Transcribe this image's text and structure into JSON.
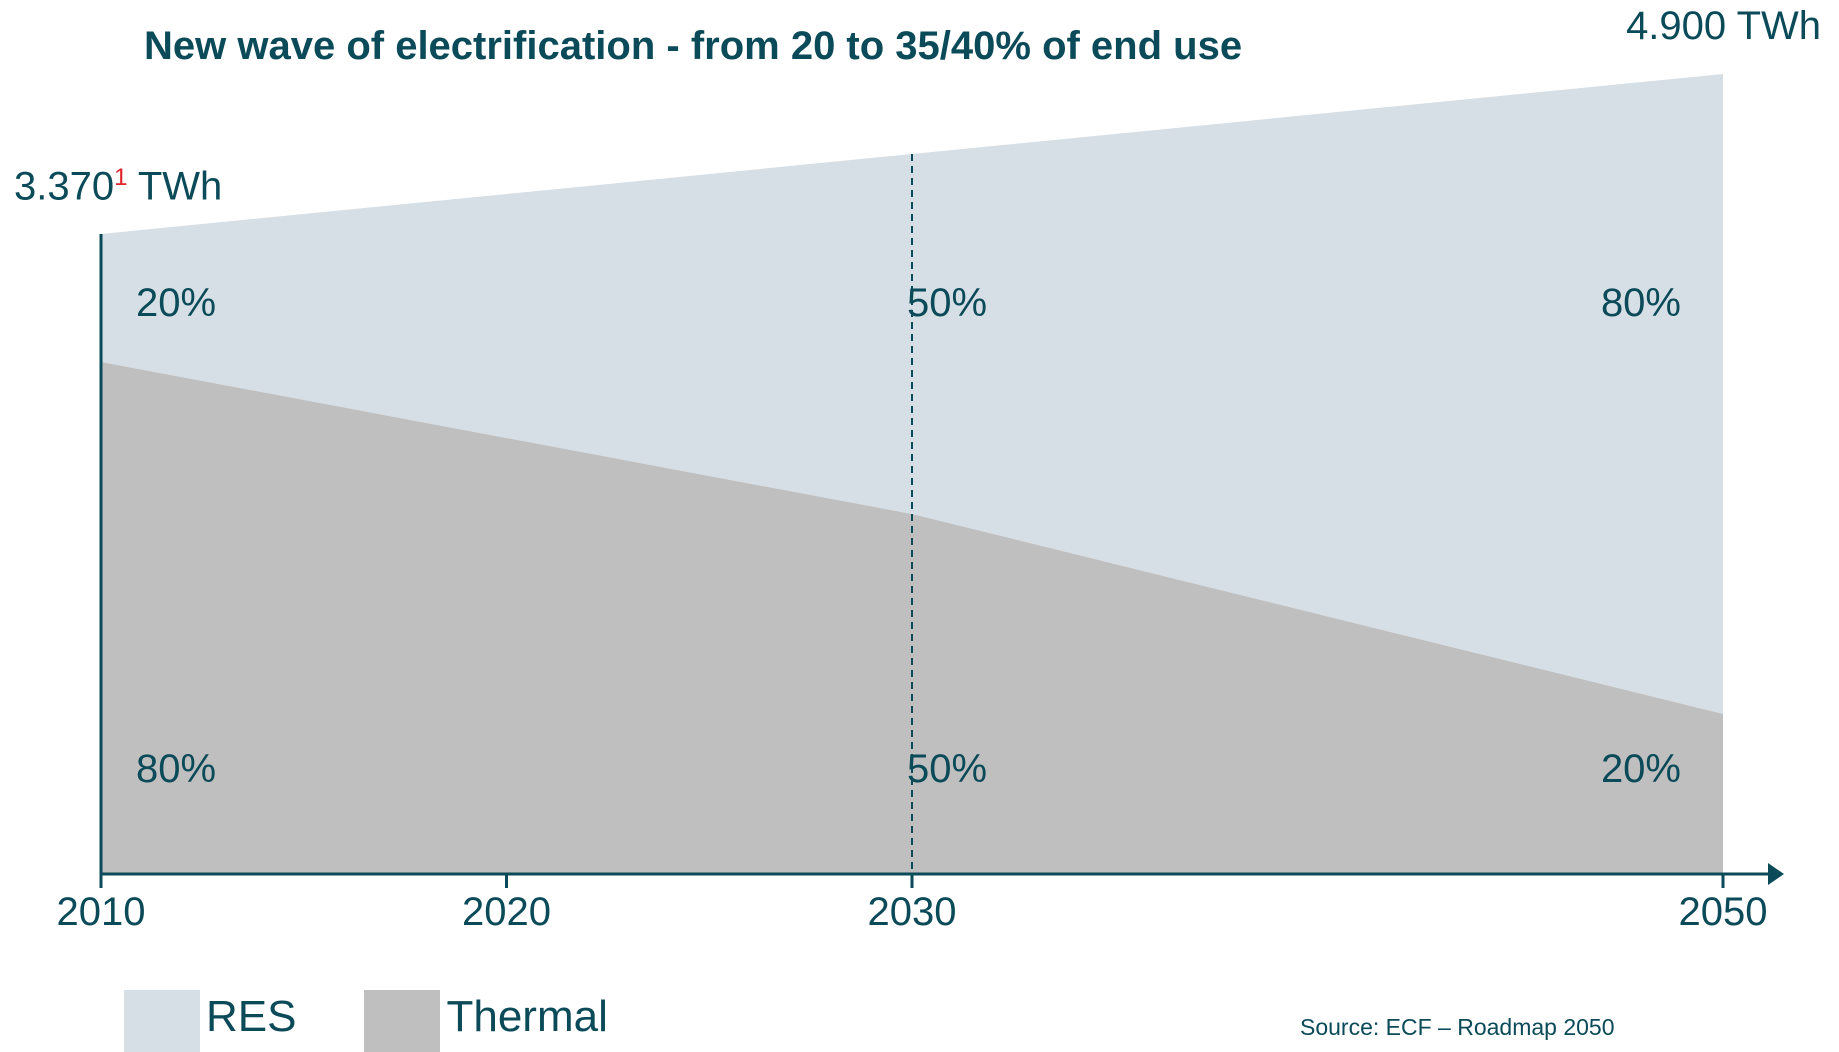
{
  "chart_data": {
    "type": "area",
    "title": "New wave of electrification - from 20 to 35/40% of end use",
    "x": [
      2010,
      2030,
      2050
    ],
    "tick_labels": [
      "2010",
      "2020",
      "2030",
      "2050"
    ],
    "series": [
      {
        "name": "Thermal",
        "share_percent": [
          80,
          50,
          20
        ],
        "color": "#bfbfbf"
      },
      {
        "name": "RES",
        "share_percent": [
          20,
          50,
          80
        ],
        "color": "#d6dfe6"
      }
    ],
    "totals": [
      {
        "year": 2010,
        "label": "3.370",
        "footnote": "1",
        "unit": "TWh"
      },
      {
        "year": 2050,
        "label": "4.900",
        "unit": "TWh"
      }
    ],
    "share_labels": {
      "res": [
        "20%",
        "50%",
        "80%"
      ],
      "thermal": [
        "80%",
        "50%",
        "20%"
      ]
    },
    "divider_year": 2030,
    "legend_position": "bottom-left"
  },
  "legend": [
    {
      "label": "RES",
      "color": "#d6dfe6"
    },
    {
      "label": "Thermal",
      "color": "#bfbfbf"
    }
  ],
  "source": "Source: ECF – Roadmap 2050"
}
